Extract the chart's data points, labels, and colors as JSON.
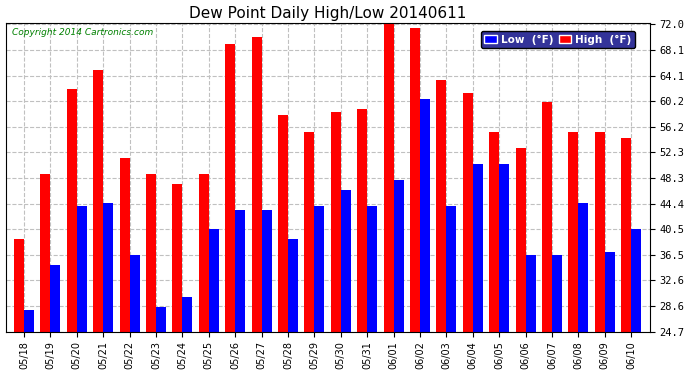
{
  "title": "Dew Point Daily High/Low 20140611",
  "copyright": "Copyright 2014 Cartronics.com",
  "dates": [
    "05/18",
    "05/19",
    "05/20",
    "05/21",
    "05/22",
    "05/23",
    "05/24",
    "05/25",
    "05/26",
    "05/27",
    "05/28",
    "05/29",
    "05/30",
    "05/31",
    "06/01",
    "06/02",
    "06/03",
    "06/04",
    "06/05",
    "06/06",
    "06/07",
    "06/08",
    "06/09",
    "06/10"
  ],
  "high": [
    39.0,
    49.0,
    62.0,
    65.0,
    51.5,
    49.0,
    47.5,
    49.0,
    69.0,
    70.0,
    58.0,
    55.5,
    58.5,
    59.0,
    72.0,
    71.5,
    63.5,
    61.5,
    55.5,
    53.0,
    60.0,
    55.5,
    55.5,
    54.5
  ],
  "low": [
    28.0,
    35.0,
    44.0,
    44.5,
    36.5,
    28.5,
    30.0,
    40.5,
    43.5,
    43.5,
    39.0,
    44.0,
    46.5,
    44.0,
    48.0,
    60.5,
    44.0,
    50.5,
    50.5,
    36.5,
    36.5,
    44.5,
    37.0,
    40.5
  ],
  "yticks": [
    24.7,
    28.6,
    32.6,
    36.5,
    40.5,
    44.4,
    48.3,
    52.3,
    56.2,
    60.2,
    64.1,
    68.1,
    72.0
  ],
  "ylim_min": 24.7,
  "ylim_max": 72.0,
  "high_color": "#FF0000",
  "low_color": "#0000FF",
  "bg_color": "#FFFFFF",
  "grid_color": "#C0C0C0",
  "title_fontsize": 11,
  "legend_low_label": "Low  (°F)",
  "legend_high_label": "High  (°F)",
  "legend_bg": "#333399",
  "bar_width": 0.38
}
